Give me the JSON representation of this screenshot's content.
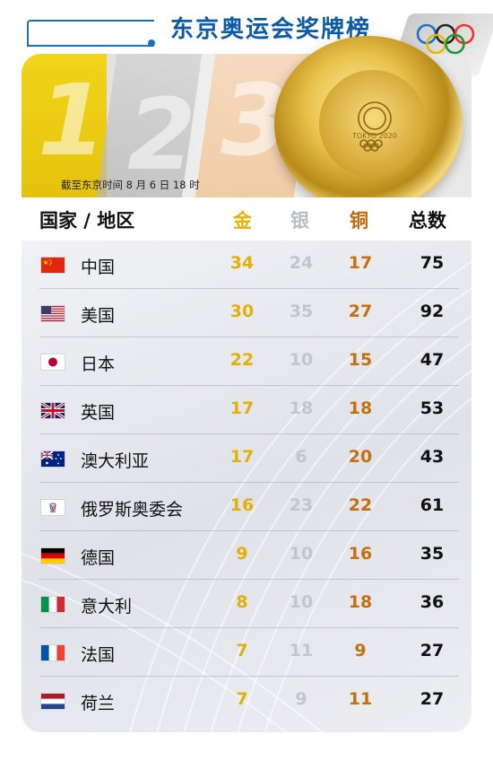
{
  "title": "东京奥运会奖牌榜",
  "as_of": "截至东京时间 8 月 6 日 18 时",
  "banner_numbers": [
    "1",
    "2",
    "3"
  ],
  "medal_text": "TOKYO 2020",
  "headers": {
    "country": "国家 / 地区",
    "gold": "金",
    "silver": "银",
    "bronze": "铜",
    "total": "总数"
  },
  "colors": {
    "title": "#0e5aa7",
    "gold": "#e2b007",
    "silver": "#c2c5cb",
    "bronze": "#c5700f"
  },
  "rows": [
    {
      "flag": "china-flag-icon",
      "name": "中国",
      "gold": "34",
      "silver": "24",
      "bronze": "17",
      "total": "75"
    },
    {
      "flag": "usa-flag-icon",
      "name": "美国",
      "gold": "30",
      "silver": "35",
      "bronze": "27",
      "total": "92"
    },
    {
      "flag": "japan-flag-icon",
      "name": "日本",
      "gold": "22",
      "silver": "10",
      "bronze": "15",
      "total": "47"
    },
    {
      "flag": "uk-flag-icon",
      "name": "英国",
      "gold": "17",
      "silver": "18",
      "bronze": "18",
      "total": "53"
    },
    {
      "flag": "australia-flag-icon",
      "name": "澳大利亚",
      "gold": "17",
      "silver": "6",
      "bronze": "20",
      "total": "43"
    },
    {
      "flag": "roc-flag-icon",
      "name": "俄罗斯奥委会",
      "gold": "16",
      "silver": "23",
      "bronze": "22",
      "total": "61"
    },
    {
      "flag": "germany-flag-icon",
      "name": "德国",
      "gold": "9",
      "silver": "10",
      "bronze": "16",
      "total": "35"
    },
    {
      "flag": "italy-flag-icon",
      "name": "意大利",
      "gold": "8",
      "silver": "10",
      "bronze": "18",
      "total": "36"
    },
    {
      "flag": "france-flag-icon",
      "name": "法国",
      "gold": "7",
      "silver": "11",
      "bronze": "9",
      "total": "27"
    },
    {
      "flag": "netherlands-flag-icon",
      "name": "荷兰",
      "gold": "7",
      "silver": "9",
      "bronze": "11",
      "total": "27"
    }
  ]
}
